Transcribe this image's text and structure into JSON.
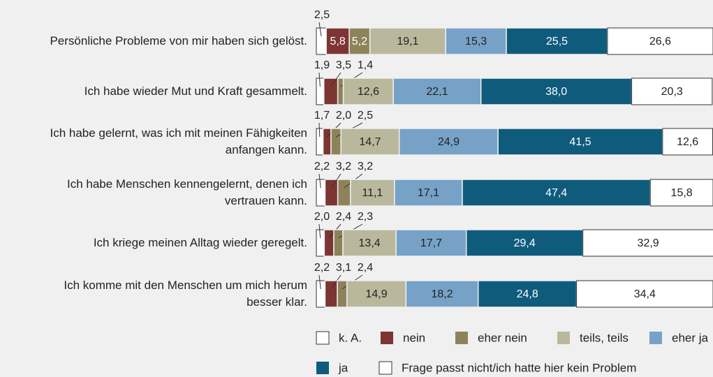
{
  "chart_data": {
    "type": "stacked-bar-horizontal",
    "categories": [
      "Persönliche Probleme von mir haben sich gelöst.",
      "Ich habe wieder Mut und Kraft gesammelt.",
      "Ich habe gelernt, was ich mit meinen Fähigkeiten\nanfangen kann.",
      "Ich habe Menschen kennengelernt, denen ich\nvertrauen kann.",
      "Ich kriege meinen Alltag wieder geregelt.",
      "Ich komme mit den Menschen um mich herum\nbesser klar."
    ],
    "series": [
      {
        "name": "k. A.",
        "color": "#ffffff",
        "values": [
          2.5,
          1.9,
          1.7,
          2.2,
          2.0,
          2.2
        ],
        "value_labels": [
          "2,5",
          "1,9",
          "1,7",
          "2,2",
          "2,0",
          "2,2"
        ]
      },
      {
        "name": "nein",
        "color": "#7d3534",
        "values": [
          5.8,
          3.5,
          2.0,
          3.2,
          2.4,
          3.1
        ],
        "value_labels": [
          "5,8",
          "3,5",
          "2,0",
          "3,2",
          "2,4",
          "3,1"
        ]
      },
      {
        "name": "eher nein",
        "color": "#8d835b",
        "values": [
          5.2,
          1.4,
          2.5,
          3.2,
          2.3,
          2.4
        ],
        "value_labels": [
          "5,2",
          "1,4",
          "2,5",
          "3,2",
          "2,3",
          "2,4"
        ]
      },
      {
        "name": "teils, teils",
        "color": "#bab89c",
        "values": [
          19.1,
          12.6,
          14.7,
          11.1,
          13.4,
          14.9
        ],
        "value_labels": [
          "19,1",
          "12,6",
          "14,7",
          "11,1",
          "13,4",
          "14,9"
        ]
      },
      {
        "name": "eher ja",
        "color": "#77a2c7",
        "values": [
          15.3,
          22.1,
          24.9,
          17.1,
          17.7,
          18.2
        ],
        "value_labels": [
          "15,3",
          "22,1",
          "24,9",
          "17,1",
          "17,7",
          "18,2"
        ]
      },
      {
        "name": "ja",
        "color": "#0f5b7c",
        "values": [
          25.5,
          38.0,
          41.5,
          47.4,
          29.4,
          24.8
        ],
        "value_labels": [
          "25,5",
          "38,0",
          "41,5",
          "47,4",
          "29,4",
          "24,8"
        ]
      },
      {
        "name": "Frage passt nicht/ich hatte hier kein Problem",
        "color": "#ffffff",
        "values": [
          26.6,
          20.3,
          12.6,
          15.8,
          32.9,
          34.4
        ],
        "value_labels": [
          "26,6",
          "20,3",
          "12,6",
          "15,8",
          "32,9",
          "34,4"
        ]
      }
    ]
  }
}
